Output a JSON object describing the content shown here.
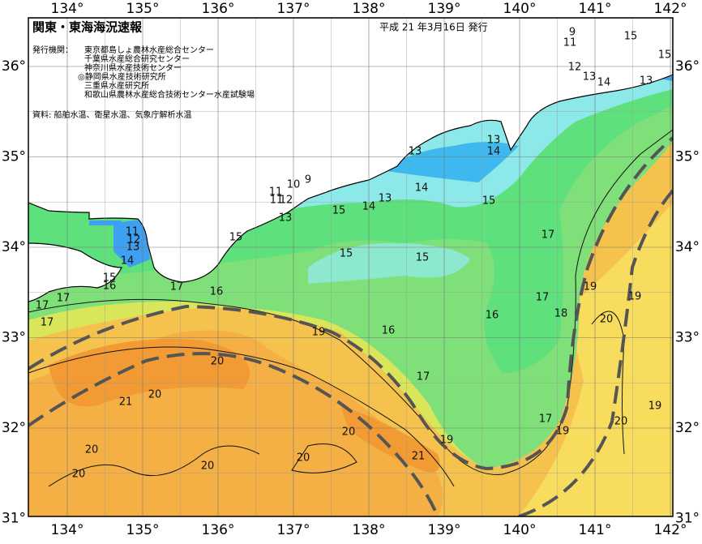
{
  "header": {
    "title": "関東・東海海況速報",
    "date": "平成 21 年3月16日 発行",
    "issuer_label": "発行機関：",
    "issuers": [
      "東京都島しょ農林水産総合センター",
      "千葉県水産総合研究センター",
      "神奈川県水産技術センター",
      "◎静岡県水産技術研究所",
      "三重県水産研究所",
      "和歌山県農林水産総合技術センター水産試験場"
    ],
    "source": "資料: 船舶水温、衛星水温、気象庁解析水温"
  },
  "longitudes": [
    "134°",
    "135°",
    "136°",
    "137°",
    "138°",
    "139°",
    "140°",
    "141°",
    "142°"
  ],
  "latitudes": [
    "36°",
    "35°",
    "34°",
    "33°",
    "32°",
    "31°"
  ],
  "contour_labels": [
    9,
    11,
    15,
    15,
    12,
    13,
    14,
    13,
    13,
    14,
    13,
    14,
    13,
    15,
    14,
    15,
    11,
    10,
    9,
    11,
    12,
    13,
    15,
    11,
    12,
    13,
    14,
    15,
    16,
    17,
    16,
    17,
    17,
    17,
    15,
    15,
    17,
    19,
    17,
    18,
    16,
    16,
    19,
    20,
    19,
    20,
    21,
    20,
    17,
    17,
    19,
    20,
    19,
    20,
    19,
    21,
    20,
    20,
    20,
    20
  ]
}
